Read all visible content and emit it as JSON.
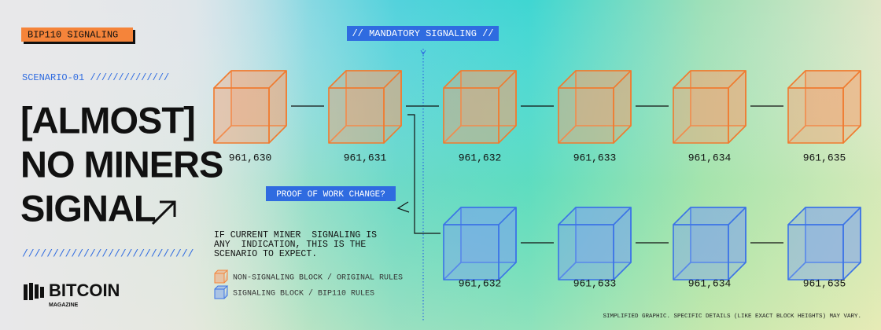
{
  "badge": "BIP110 SIGNALING",
  "scenario": "SCENARIO-01 //////////////",
  "headline": [
    "[ALMOST]",
    "NO MINERS",
    "SIGNAL"
  ],
  "divider": "////////////////////////////",
  "logo": {
    "name": "BITCOIN",
    "sub": "MAGAZINE"
  },
  "mandatory_label": "// MANDATORY SIGNALING //",
  "fork_label": "PROOF OF WORK CHANGE?",
  "description": [
    "IF CURRENT MINER  SIGNALING IS",
    "ANY  INDICATION, THIS IS THE",
    "SCENARIO TO EXPECT."
  ],
  "legend": [
    {
      "label": "NON-SIGNALING BLOCK / ORIGINAL RULES"
    },
    {
      "label": "SIGNALING BLOCK / BIP110 RULES"
    }
  ],
  "chain_original": {
    "blocks": [
      "961,630",
      "961,631",
      "961,632",
      "961,633",
      "961,634",
      "961,635"
    ]
  },
  "chain_bip110": {
    "blocks": [
      "961,632",
      "961,633",
      "961,634",
      "961,635"
    ]
  },
  "footnote": "SIMPLIFIED GRAPHIC. SPECIFIC DETAILS (LIKE EXACT BLOCK HEIGHTS) MAY VARY."
}
